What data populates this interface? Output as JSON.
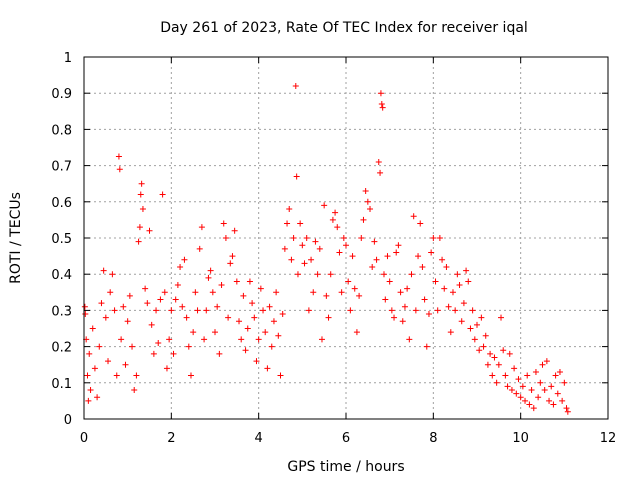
{
  "chart_data": {
    "type": "scatter",
    "title": "Day 261 of 2023, Rate Of TEC Index for receiver iqal",
    "xlabel": "GPS time / hours",
    "ylabel": "ROTI / TECUs",
    "xlim": [
      0,
      12
    ],
    "ylim": [
      0,
      1
    ],
    "xticks": [
      "0",
      "2",
      "4",
      "6",
      "8",
      "10",
      "12"
    ],
    "yticks": [
      "0",
      "0.1",
      "0.2",
      "0.3",
      "0.4",
      "0.5",
      "0.6",
      "0.7",
      "0.8",
      "0.9",
      "1"
    ],
    "grid": true,
    "marker": "plus",
    "color": "#ff0000",
    "series": [
      {
        "points": [
          [
            0.02,
            0.31
          ],
          [
            0.03,
            0.29
          ],
          [
            0.05,
            0.22
          ],
          [
            0.08,
            0.12
          ],
          [
            0.1,
            0.05
          ],
          [
            0.12,
            0.18
          ],
          [
            0.15,
            0.08
          ],
          [
            0.2,
            0.25
          ],
          [
            0.25,
            0.14
          ],
          [
            0.3,
            0.06
          ],
          [
            0.35,
            0.2
          ],
          [
            0.4,
            0.32
          ],
          [
            0.45,
            0.41
          ],
          [
            0.5,
            0.28
          ],
          [
            0.55,
            0.16
          ],
          [
            0.6,
            0.35
          ],
          [
            0.65,
            0.4
          ],
          [
            0.7,
            0.3
          ],
          [
            0.75,
            0.12
          ],
          [
            0.8,
            0.725
          ],
          [
            0.82,
            0.69
          ],
          [
            0.85,
            0.22
          ],
          [
            0.9,
            0.31
          ],
          [
            0.95,
            0.15
          ],
          [
            1.0,
            0.27
          ],
          [
            1.05,
            0.34
          ],
          [
            1.1,
            0.2
          ],
          [
            1.15,
            0.08
          ],
          [
            1.2,
            0.12
          ],
          [
            1.25,
            0.49
          ],
          [
            1.28,
            0.53
          ],
          [
            1.3,
            0.62
          ],
          [
            1.32,
            0.65
          ],
          [
            1.35,
            0.58
          ],
          [
            1.4,
            0.36
          ],
          [
            1.45,
            0.32
          ],
          [
            1.5,
            0.52
          ],
          [
            1.55,
            0.26
          ],
          [
            1.6,
            0.18
          ],
          [
            1.65,
            0.3
          ],
          [
            1.7,
            0.21
          ],
          [
            1.75,
            0.33
          ],
          [
            1.8,
            0.62
          ],
          [
            1.85,
            0.35
          ],
          [
            1.9,
            0.14
          ],
          [
            1.95,
            0.22
          ],
          [
            2.0,
            0.3
          ],
          [
            2.05,
            0.18
          ],
          [
            2.1,
            0.33
          ],
          [
            2.15,
            0.37
          ],
          [
            2.2,
            0.42
          ],
          [
            2.25,
            0.31
          ],
          [
            2.3,
            0.44
          ],
          [
            2.35,
            0.28
          ],
          [
            2.4,
            0.2
          ],
          [
            2.45,
            0.12
          ],
          [
            2.5,
            0.24
          ],
          [
            2.55,
            0.35
          ],
          [
            2.6,
            0.3
          ],
          [
            2.65,
            0.47
          ],
          [
            2.7,
            0.53
          ],
          [
            2.75,
            0.22
          ],
          [
            2.8,
            0.3
          ],
          [
            2.85,
            0.39
          ],
          [
            2.9,
            0.41
          ],
          [
            2.95,
            0.35
          ],
          [
            3.0,
            0.24
          ],
          [
            3.05,
            0.31
          ],
          [
            3.1,
            0.18
          ],
          [
            3.15,
            0.37
          ],
          [
            3.2,
            0.54
          ],
          [
            3.25,
            0.5
          ],
          [
            3.3,
            0.28
          ],
          [
            3.35,
            0.43
          ],
          [
            3.4,
            0.45
          ],
          [
            3.45,
            0.52
          ],
          [
            3.5,
            0.38
          ],
          [
            3.55,
            0.27
          ],
          [
            3.6,
            0.22
          ],
          [
            3.65,
            0.34
          ],
          [
            3.7,
            0.19
          ],
          [
            3.75,
            0.25
          ],
          [
            3.8,
            0.38
          ],
          [
            3.85,
            0.32
          ],
          [
            3.9,
            0.28
          ],
          [
            3.95,
            0.16
          ],
          [
            4.0,
            0.22
          ],
          [
            4.05,
            0.36
          ],
          [
            4.1,
            0.3
          ],
          [
            4.15,
            0.24
          ],
          [
            4.2,
            0.14
          ],
          [
            4.25,
            0.31
          ],
          [
            4.3,
            0.2
          ],
          [
            4.35,
            0.27
          ],
          [
            4.4,
            0.35
          ],
          [
            4.45,
            0.23
          ],
          [
            4.5,
            0.12
          ],
          [
            4.55,
            0.29
          ],
          [
            4.6,
            0.47
          ],
          [
            4.65,
            0.54
          ],
          [
            4.7,
            0.58
          ],
          [
            4.75,
            0.44
          ],
          [
            4.8,
            0.5
          ],
          [
            4.85,
            0.92
          ],
          [
            4.87,
            0.67
          ],
          [
            4.9,
            0.4
          ],
          [
            4.95,
            0.54
          ],
          [
            5.0,
            0.48
          ],
          [
            5.05,
            0.43
          ],
          [
            5.1,
            0.5
          ],
          [
            5.15,
            0.3
          ],
          [
            5.2,
            0.44
          ],
          [
            5.25,
            0.35
          ],
          [
            5.3,
            0.49
          ],
          [
            5.35,
            0.4
          ],
          [
            5.4,
            0.47
          ],
          [
            5.45,
            0.22
          ],
          [
            5.5,
            0.59
          ],
          [
            5.55,
            0.34
          ],
          [
            5.6,
            0.28
          ],
          [
            5.65,
            0.4
          ],
          [
            5.7,
            0.55
          ],
          [
            5.75,
            0.57
          ],
          [
            5.8,
            0.53
          ],
          [
            5.85,
            0.46
          ],
          [
            5.9,
            0.35
          ],
          [
            5.95,
            0.5
          ],
          [
            6.0,
            0.48
          ],
          [
            6.05,
            0.38
          ],
          [
            6.1,
            0.3
          ],
          [
            6.15,
            0.45
          ],
          [
            6.2,
            0.36
          ],
          [
            6.25,
            0.24
          ],
          [
            6.3,
            0.34
          ],
          [
            6.35,
            0.5
          ],
          [
            6.4,
            0.55
          ],
          [
            6.45,
            0.63
          ],
          [
            6.5,
            0.6
          ],
          [
            6.55,
            0.58
          ],
          [
            6.6,
            0.42
          ],
          [
            6.65,
            0.49
          ],
          [
            6.7,
            0.44
          ],
          [
            6.75,
            0.71
          ],
          [
            6.78,
            0.68
          ],
          [
            6.8,
            0.9
          ],
          [
            6.82,
            0.87
          ],
          [
            6.84,
            0.86
          ],
          [
            6.87,
            0.4
          ],
          [
            6.9,
            0.33
          ],
          [
            6.95,
            0.45
          ],
          [
            7.0,
            0.38
          ],
          [
            7.05,
            0.3
          ],
          [
            7.1,
            0.28
          ],
          [
            7.15,
            0.46
          ],
          [
            7.2,
            0.48
          ],
          [
            7.25,
            0.35
          ],
          [
            7.3,
            0.27
          ],
          [
            7.35,
            0.31
          ],
          [
            7.4,
            0.36
          ],
          [
            7.45,
            0.22
          ],
          [
            7.5,
            0.4
          ],
          [
            7.55,
            0.56
          ],
          [
            7.6,
            0.3
          ],
          [
            7.65,
            0.45
          ],
          [
            7.7,
            0.54
          ],
          [
            7.75,
            0.42
          ],
          [
            7.8,
            0.33
          ],
          [
            7.85,
            0.2
          ],
          [
            7.9,
            0.29
          ],
          [
            7.95,
            0.46
          ],
          [
            8.0,
            0.5
          ],
          [
            8.05,
            0.38
          ],
          [
            8.1,
            0.3
          ],
          [
            8.15,
            0.5
          ],
          [
            8.2,
            0.44
          ],
          [
            8.25,
            0.36
          ],
          [
            8.3,
            0.42
          ],
          [
            8.35,
            0.31
          ],
          [
            8.4,
            0.24
          ],
          [
            8.45,
            0.35
          ],
          [
            8.5,
            0.3
          ],
          [
            8.55,
            0.4
          ],
          [
            8.6,
            0.37
          ],
          [
            8.65,
            0.27
          ],
          [
            8.7,
            0.32
          ],
          [
            8.75,
            0.41
          ],
          [
            8.8,
            0.38
          ],
          [
            8.85,
            0.25
          ],
          [
            8.9,
            0.3
          ],
          [
            8.95,
            0.22
          ],
          [
            9.0,
            0.26
          ],
          [
            9.05,
            0.19
          ],
          [
            9.1,
            0.28
          ],
          [
            9.15,
            0.2
          ],
          [
            9.2,
            0.23
          ],
          [
            9.25,
            0.15
          ],
          [
            9.3,
            0.18
          ],
          [
            9.35,
            0.12
          ],
          [
            9.4,
            0.17
          ],
          [
            9.45,
            0.1
          ],
          [
            9.5,
            0.15
          ],
          [
            9.55,
            0.28
          ],
          [
            9.6,
            0.19
          ],
          [
            9.65,
            0.12
          ],
          [
            9.7,
            0.09
          ],
          [
            9.75,
            0.18
          ],
          [
            9.8,
            0.08
          ],
          [
            9.85,
            0.14
          ],
          [
            9.9,
            0.07
          ],
          [
            9.95,
            0.11
          ],
          [
            10.0,
            0.06
          ],
          [
            10.05,
            0.09
          ],
          [
            10.1,
            0.05
          ],
          [
            10.15,
            0.12
          ],
          [
            10.2,
            0.04
          ],
          [
            10.25,
            0.08
          ],
          [
            10.3,
            0.03
          ],
          [
            10.35,
            0.13
          ],
          [
            10.4,
            0.06
          ],
          [
            10.45,
            0.1
          ],
          [
            10.5,
            0.15
          ],
          [
            10.55,
            0.08
          ],
          [
            10.6,
            0.16
          ],
          [
            10.65,
            0.05
          ],
          [
            10.7,
            0.09
          ],
          [
            10.75,
            0.04
          ],
          [
            10.8,
            0.12
          ],
          [
            10.85,
            0.07
          ],
          [
            10.9,
            0.13
          ],
          [
            10.95,
            0.05
          ],
          [
            11.0,
            0.1
          ],
          [
            11.05,
            0.03
          ],
          [
            11.08,
            0.02
          ]
        ]
      }
    ]
  }
}
